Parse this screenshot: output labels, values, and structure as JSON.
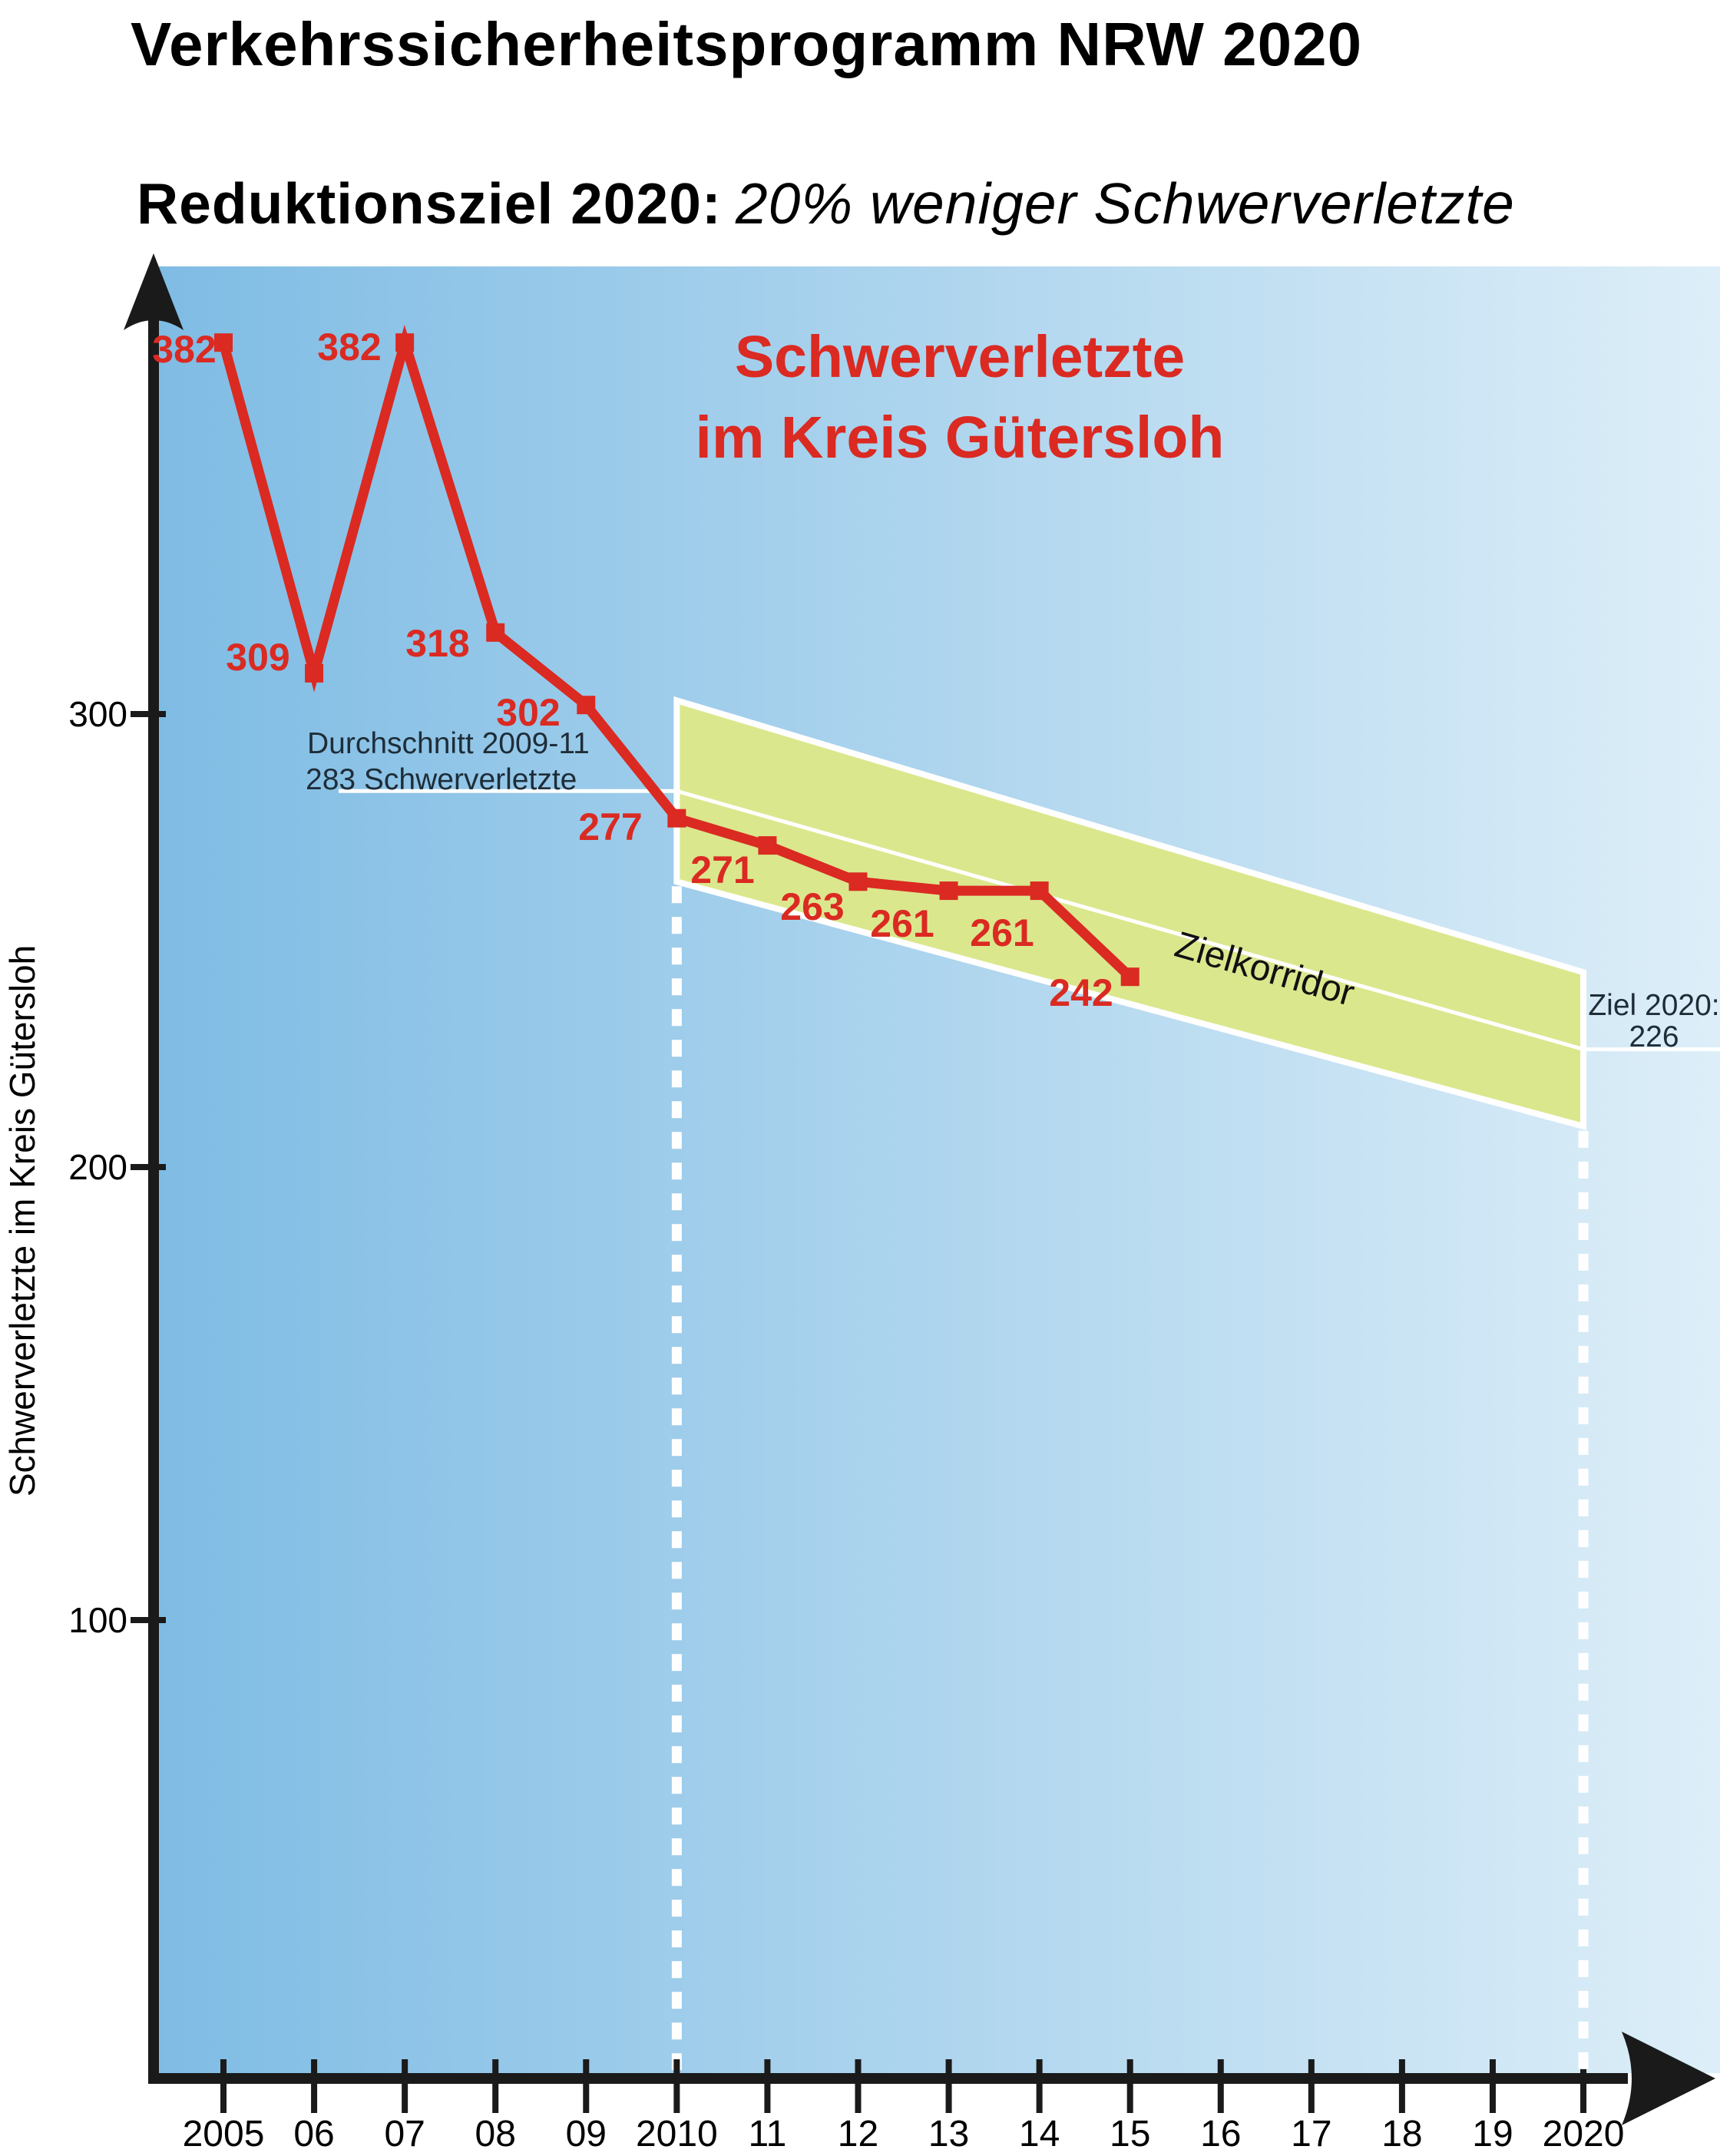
{
  "page": {
    "title": "Verkehrssicherheitsprogramm NRW 2020",
    "subtitle": {
      "bold": "Reduktionsziel 2020:",
      "italic": "20% weniger Schwerverletzte"
    }
  },
  "chart_data": {
    "type": "line",
    "title_line1": "Schwerverletzte",
    "title_line2": "im Kreis Gütersloh",
    "ylabel": "Schwerverletzte im Kreis Gütersloh",
    "x": [
      2005,
      2006,
      2007,
      2008,
      2009,
      2010,
      2011,
      2012,
      2013,
      2014,
      2015
    ],
    "values": [
      382,
      309,
      382,
      318,
      302,
      277,
      271,
      263,
      261,
      261,
      242
    ],
    "x_ticks": [
      {
        "year": 2005,
        "label": "2005"
      },
      {
        "year": 2006,
        "label": "06"
      },
      {
        "year": 2007,
        "label": "07"
      },
      {
        "year": 2008,
        "label": "08"
      },
      {
        "year": 2009,
        "label": "09"
      },
      {
        "year": 2010,
        "label": "2010"
      },
      {
        "year": 2011,
        "label": "11"
      },
      {
        "year": 2012,
        "label": "12"
      },
      {
        "year": 2013,
        "label": "13"
      },
      {
        "year": 2014,
        "label": "14"
      },
      {
        "year": 2015,
        "label": "15"
      },
      {
        "year": 2016,
        "label": "16"
      },
      {
        "year": 2017,
        "label": "17"
      },
      {
        "year": 2018,
        "label": "18"
      },
      {
        "year": 2019,
        "label": "19"
      },
      {
        "year": 2020,
        "label": "2020"
      }
    ],
    "y_ticks": [
      {
        "value": 300,
        "label": "300"
      },
      {
        "value": 200,
        "label": "200"
      },
      {
        "value": 100,
        "label": "100"
      }
    ],
    "ylim": [
      0,
      400
    ],
    "xlim": [
      2005,
      2020
    ],
    "grid": false,
    "legend": "none",
    "target_corridor": {
      "label": "Zielkorridor",
      "x_start": 2010,
      "x_end": 2020,
      "upper_start": 303,
      "upper_end": 243,
      "center_start": 283,
      "center_end": 226,
      "lower_start": 263,
      "lower_end": 209
    },
    "annotations": {
      "average": {
        "line1": "Durchschnitt 2009-11",
        "line2": "283 Schwerverletzte",
        "value": 283
      },
      "goal": {
        "line1": "Ziel 2020:",
        "line2": "226",
        "value": 226
      }
    }
  },
  "colors": {
    "series_red": "#da2a22",
    "corridor_fill": "#dbe78d",
    "bg_left": "#7fbce4",
    "bg_right": "#ddeef8",
    "axis_black": "#1a1a1a",
    "annotation_text": "#1e2d38",
    "corridor_label_text": "#111111",
    "reference_line": "#ffffff"
  }
}
